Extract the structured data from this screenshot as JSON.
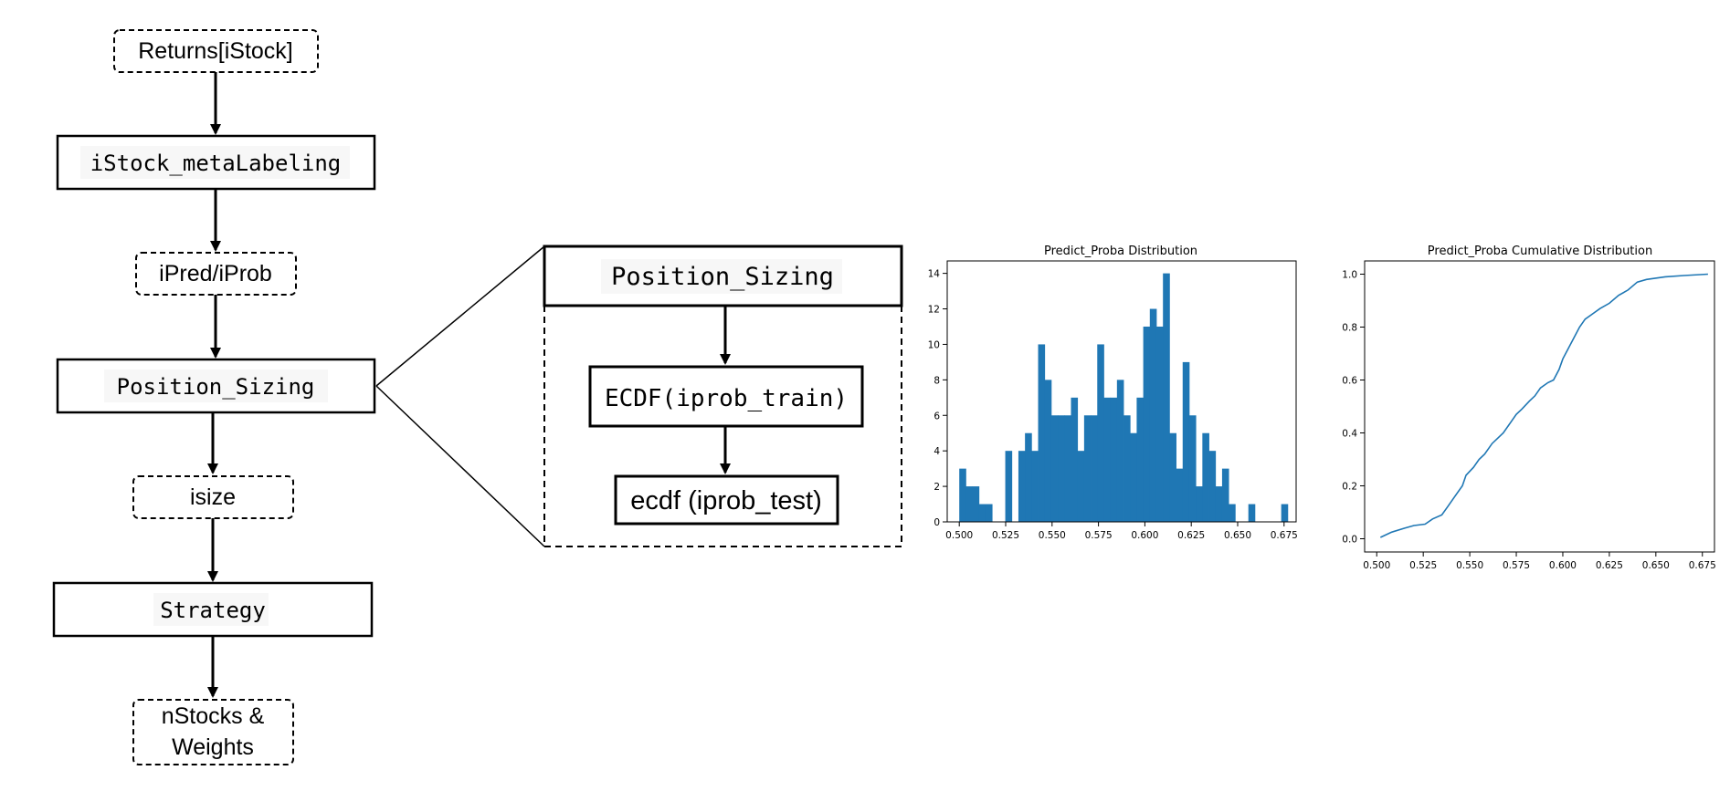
{
  "flowchart": {
    "returns": "Returns[iStock]",
    "metalabeling": "iStock_metaLabeling",
    "pred": "iPred/iProb",
    "position_sizing": "Position_Sizing",
    "isize": "isize",
    "strategy": "Strategy",
    "output_line1": "nStocks &",
    "output_line2": "Weights"
  },
  "detail": {
    "header": "Position_Sizing",
    "ecdf_train": "ECDF(iprob_train)",
    "ecdf_test": "ecdf (iprob_test)"
  },
  "colors": {
    "bar": "#1f77b4",
    "line": "#1f77b4",
    "stroke": "#000000"
  },
  "chart_data": [
    {
      "type": "bar",
      "title": "Predict_Proba Distribution",
      "xlabel": "",
      "ylabel": "",
      "bin_width": 0.00354,
      "bin_starts": [
        0.5,
        0.50354,
        0.50708,
        0.51062,
        0.51416,
        0.5177,
        0.52124,
        0.52478,
        0.52832,
        0.53186,
        0.5354,
        0.53894,
        0.54248,
        0.54602,
        0.54956,
        0.5531,
        0.55664,
        0.56018,
        0.56372,
        0.56726,
        0.5708,
        0.57434,
        0.57788,
        0.58142,
        0.58496,
        0.5885,
        0.59204,
        0.59558,
        0.59912,
        0.60266,
        0.6062,
        0.60974,
        0.61328,
        0.61682,
        0.62036,
        0.6239,
        0.62744,
        0.63098,
        0.63452,
        0.63806,
        0.6416,
        0.64514,
        0.64868,
        0.65222,
        0.65576,
        0.6593,
        0.66284,
        0.66638,
        0.66992,
        0.67346
      ],
      "values": [
        3,
        2,
        2,
        1,
        1,
        0,
        0,
        4,
        0,
        4,
        5,
        4,
        10,
        8,
        6,
        6,
        6,
        7,
        4,
        6,
        6,
        10,
        7,
        7,
        8,
        6,
        5,
        7,
        11,
        12,
        11,
        14,
        5,
        3,
        9,
        6,
        2,
        5,
        4,
        2,
        3,
        1,
        0,
        0,
        1,
        0,
        0,
        0,
        0,
        1
      ],
      "xlim": [
        0.4935,
        0.6815
      ],
      "ylim": [
        0,
        14.7
      ],
      "xticks": [
        "0.500",
        "0.525",
        "0.550",
        "0.575",
        "0.600",
        "0.625",
        "0.650",
        "0.675"
      ],
      "yticks": [
        "0",
        "2",
        "4",
        "6",
        "8",
        "10",
        "12",
        "14"
      ]
    },
    {
      "type": "line",
      "title": "Predict_Proba Cumulative Distribution",
      "xlabel": "",
      "ylabel": "",
      "x": [
        0.502,
        0.508,
        0.515,
        0.52,
        0.526,
        0.53,
        0.535,
        0.538,
        0.542,
        0.546,
        0.548,
        0.552,
        0.555,
        0.558,
        0.562,
        0.565,
        0.568,
        0.572,
        0.575,
        0.578,
        0.582,
        0.585,
        0.588,
        0.592,
        0.595,
        0.598,
        0.6,
        0.603,
        0.606,
        0.609,
        0.612,
        0.616,
        0.62,
        0.625,
        0.63,
        0.635,
        0.64,
        0.645,
        0.655,
        0.665,
        0.678
      ],
      "y": [
        0.005,
        0.025,
        0.04,
        0.05,
        0.055,
        0.075,
        0.09,
        0.12,
        0.16,
        0.2,
        0.24,
        0.27,
        0.3,
        0.32,
        0.36,
        0.38,
        0.4,
        0.44,
        0.47,
        0.49,
        0.52,
        0.54,
        0.57,
        0.59,
        0.6,
        0.64,
        0.68,
        0.72,
        0.76,
        0.8,
        0.83,
        0.85,
        0.87,
        0.89,
        0.92,
        0.94,
        0.97,
        0.98,
        0.99,
        0.995,
        1.0
      ],
      "xlim": [
        0.4935,
        0.6815
      ],
      "ylim": [
        -0.05,
        1.05
      ],
      "xticks": [
        "0.500",
        "0.525",
        "0.550",
        "0.575",
        "0.600",
        "0.625",
        "0.650",
        "0.675"
      ],
      "yticks": [
        "0.0",
        "0.2",
        "0.4",
        "0.6",
        "0.8",
        "1.0"
      ]
    }
  ]
}
